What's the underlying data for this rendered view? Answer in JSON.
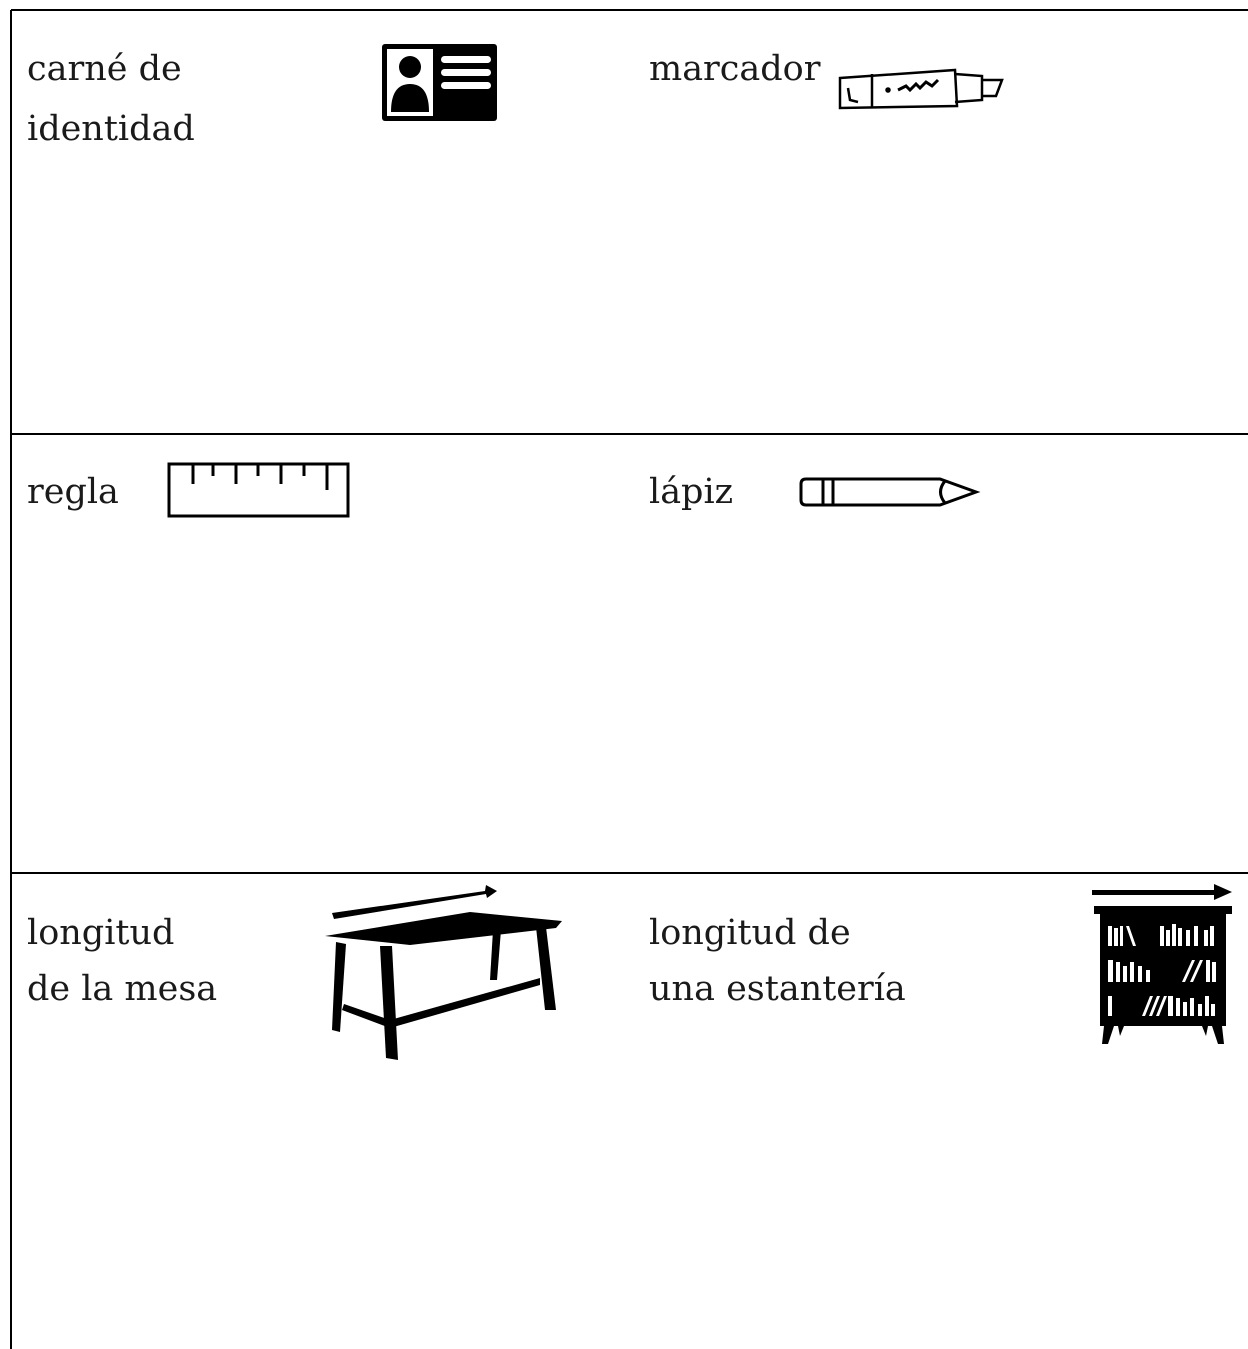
{
  "cells": [
    {
      "label": [
        "carné de",
        "identidad"
      ]
    },
    {
      "label": [
        "marcador"
      ]
    },
    {
      "label": [
        "regla"
      ]
    },
    {
      "label": [
        "lápiz"
      ]
    },
    {
      "label": [
        "longitud",
        "de la mesa"
      ]
    },
    {
      "label": [
        "longitud de",
        "una estantería"
      ]
    }
  ]
}
